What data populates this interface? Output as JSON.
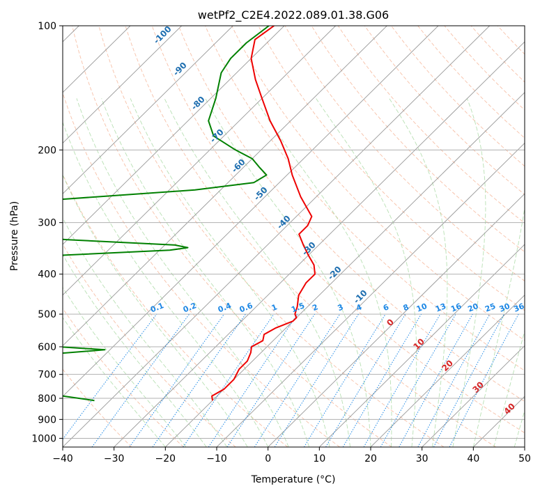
{
  "chart_data": {
    "type": "line",
    "title": "wetPf2_C2E4.2022.089.01.38.G06",
    "xlabel": "Temperature (°C)",
    "ylabel": "Pressure (hPa)",
    "xlim": [
      -40,
      50
    ],
    "ylim": [
      1050,
      100
    ],
    "y_scale": "log",
    "grid": true,
    "x_ticks": [
      -40,
      -30,
      -20,
      -10,
      0,
      10,
      20,
      30,
      40,
      50
    ],
    "y_ticks": [
      100,
      200,
      300,
      400,
      500,
      600,
      700,
      800,
      900,
      1000
    ],
    "colors": {
      "temperature": "#ee0000",
      "dewpoint": "#008000",
      "isotherm": "#999999",
      "dry_adiabat": "#f4a582",
      "moist_adiabat": "#a6d8a0",
      "mixing_ratio": "#1e88e5",
      "dry_label": "#1f6fb0",
      "moist_label": "#d62728"
    },
    "series": [
      {
        "key": "temperature",
        "p": [
          100,
          108,
          120,
          135,
          150,
          170,
          190,
          210,
          230,
          260,
          290,
          305,
          320,
          340,
          360,
          380,
          400,
          420,
          450,
          480,
          500,
          510,
          520,
          540,
          560,
          580,
          600,
          620,
          650,
          680,
          720,
          760,
          790,
          810
        ],
        "t": [
          -82,
          -83,
          -80,
          -75,
          -70,
          -64,
          -58,
          -53,
          -49,
          -43,
          -37,
          -36,
          -36,
          -33,
          -30,
          -27,
          -25,
          -25,
          -24,
          -22,
          -21,
          -20,
          -20,
          -22,
          -23,
          -22,
          -23,
          -22,
          -21,
          -21,
          -20,
          -20,
          -21,
          -20
        ]
      },
      {
        "key": "dewpoint",
        "p": [
          100,
          110,
          120,
          130,
          150,
          170,
          185,
          200,
          210,
          220,
          230,
          240,
          250,
          265,
          280,
          300,
          320,
          330,
          340,
          345,
          350,
          360,
          370,
          380,
          400,
          530,
          540,
          548,
          560,
          570,
          610,
          640,
          650,
          660,
          680,
          690,
          700,
          720,
          740,
          760,
          790,
          810
        ],
        "t": [
          -83,
          -84,
          -84,
          -83,
          -79,
          -76,
          -72,
          -65,
          -60,
          -57,
          -54,
          -55,
          -65,
          -92,
          -98,
          -98,
          -96,
          -80,
          -58,
          -55,
          -58,
          -78,
          -89,
          -95,
          -104,
          -95,
          -73,
          -75,
          -100,
          -90,
          -51,
          -70,
          -82,
          -76,
          -64,
          -76,
          -80,
          -85,
          -82,
          -62,
          -50,
          -43
        ]
      }
    ],
    "dry_adiabat_labels": [
      "-100",
      "-90",
      "-80",
      "-70",
      "-60",
      "-50",
      "-40",
      "-30",
      "-20",
      "-10"
    ],
    "moist_adiabat_labels": [
      "0",
      "10",
      "20",
      "30",
      "40"
    ],
    "mixing_ratio_labels": [
      "0.1",
      "0.2",
      "0.4",
      "0.6",
      "1",
      "1.5",
      "2",
      "3",
      "4",
      "6",
      "8",
      "10",
      "13",
      "16",
      "20",
      "25",
      "30",
      "36"
    ]
  }
}
